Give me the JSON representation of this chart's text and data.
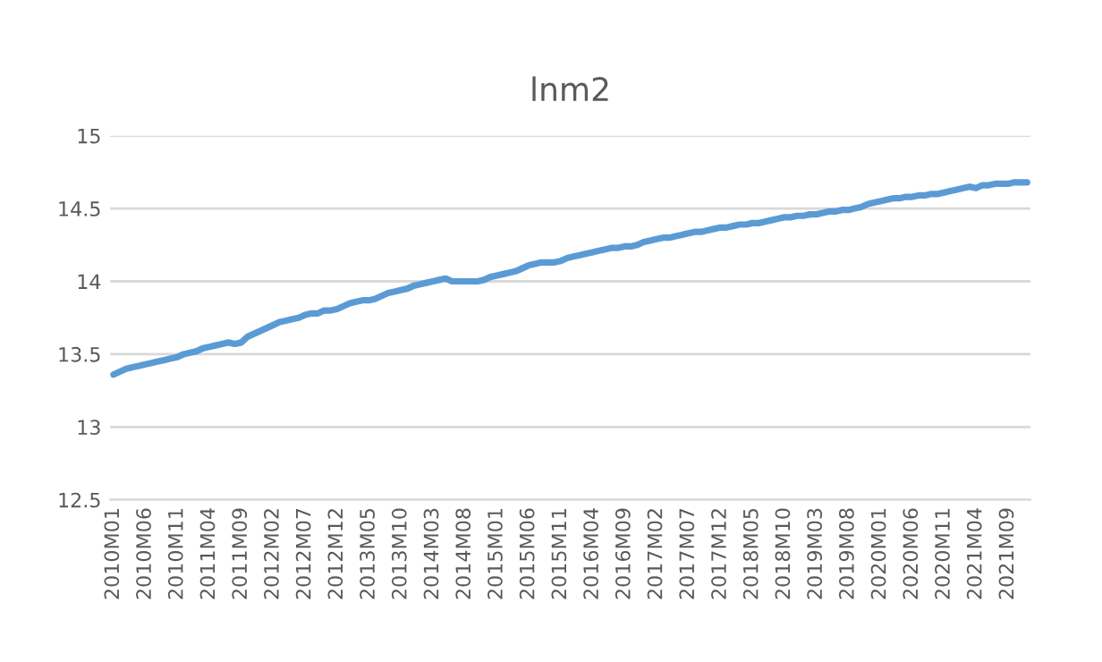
{
  "chart_data": {
    "type": "line",
    "title": "lnm2",
    "categories": [
      "2010M01",
      null,
      null,
      null,
      null,
      "2010M06",
      null,
      null,
      null,
      null,
      "2010M11",
      null,
      null,
      null,
      null,
      "2011M04",
      null,
      null,
      null,
      null,
      "2011M09",
      null,
      null,
      null,
      null,
      "2012M02",
      null,
      null,
      null,
      null,
      "2012M07",
      null,
      null,
      null,
      null,
      "2012M12",
      null,
      null,
      null,
      null,
      "2013M05",
      null,
      null,
      null,
      null,
      "2013M10",
      null,
      null,
      null,
      null,
      "2014M03",
      null,
      null,
      null,
      null,
      "2014M08",
      null,
      null,
      null,
      null,
      "2015M01",
      null,
      null,
      null,
      null,
      "2015M06",
      null,
      null,
      null,
      null,
      "2015M11",
      null,
      null,
      null,
      null,
      "2016M04",
      null,
      null,
      null,
      null,
      "2016M09",
      null,
      null,
      null,
      null,
      "2017M02",
      null,
      null,
      null,
      null,
      "2017M07",
      null,
      null,
      null,
      null,
      "2017M12",
      null,
      null,
      null,
      null,
      "2018M05",
      null,
      null,
      null,
      null,
      "2018M10",
      null,
      null,
      null,
      null,
      "2019M03",
      null,
      null,
      null,
      null,
      "2019M08",
      null,
      null,
      null,
      null,
      "2020M01",
      null,
      null,
      null,
      null,
      "2020M06",
      null,
      null,
      null,
      null,
      "2020M11",
      null,
      null,
      null,
      null,
      "2021M04",
      null,
      null,
      null,
      null,
      "2021M09",
      null,
      null,
      null
    ],
    "series": [
      {
        "color": "#5b9bd5",
        "values": [
          13.36,
          13.38,
          13.4,
          13.41,
          13.42,
          13.43,
          13.44,
          13.45,
          13.46,
          13.47,
          13.48,
          13.5,
          13.51,
          13.52,
          13.54,
          13.55,
          13.56,
          13.57,
          13.58,
          13.57,
          13.58,
          13.62,
          13.64,
          13.66,
          13.68,
          13.7,
          13.72,
          13.73,
          13.74,
          13.75,
          13.77,
          13.78,
          13.78,
          13.8,
          13.8,
          13.81,
          13.83,
          13.85,
          13.86,
          13.87,
          13.87,
          13.88,
          13.9,
          13.92,
          13.93,
          13.94,
          13.95,
          13.97,
          13.98,
          13.99,
          14.0,
          14.01,
          14.02,
          14.0,
          14.0,
          14.0,
          14.0,
          14.0,
          14.01,
          14.03,
          14.04,
          14.05,
          14.06,
          14.07,
          14.09,
          14.11,
          14.12,
          14.13,
          14.13,
          14.13,
          14.14,
          14.16,
          14.17,
          14.18,
          14.19,
          14.2,
          14.21,
          14.22,
          14.23,
          14.23,
          14.24,
          14.24,
          14.25,
          14.27,
          14.28,
          14.29,
          14.3,
          14.3,
          14.31,
          14.32,
          14.33,
          14.34,
          14.34,
          14.35,
          14.36,
          14.37,
          14.37,
          14.38,
          14.39,
          14.39,
          14.4,
          14.4,
          14.41,
          14.42,
          14.43,
          14.44,
          14.44,
          14.45,
          14.45,
          14.46,
          14.46,
          14.47,
          14.48,
          14.48,
          14.49,
          14.49,
          14.5,
          14.51,
          14.53,
          14.54,
          14.55,
          14.56,
          14.57,
          14.57,
          14.58,
          14.58,
          14.59,
          14.59,
          14.6,
          14.6,
          14.61,
          14.62,
          14.63,
          14.64,
          14.65,
          14.64,
          14.66,
          14.66,
          14.67,
          14.67,
          14.67,
          14.68,
          14.68,
          14.68
        ]
      }
    ],
    "ylim": [
      12.5,
      15
    ],
    "yticks": [
      12.5,
      13,
      13.5,
      14,
      14.5,
      15
    ],
    "grid": "y",
    "marker": "none",
    "line_style": "solid"
  }
}
